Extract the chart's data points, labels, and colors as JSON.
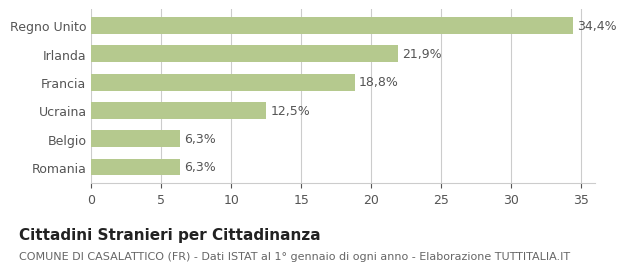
{
  "categories": [
    "Romania",
    "Belgio",
    "Ucraina",
    "Francia",
    "Irlanda",
    "Regno Unito"
  ],
  "values": [
    6.3,
    6.3,
    12.5,
    18.8,
    21.9,
    34.4
  ],
  "labels": [
    "6,3%",
    "6,3%",
    "12,5%",
    "18,8%",
    "21,9%",
    "34,4%"
  ],
  "bar_color": "#b5c98e",
  "background_color": "#ffffff",
  "xlim": [
    0,
    36
  ],
  "xticks": [
    0,
    5,
    10,
    15,
    20,
    25,
    30,
    35
  ],
  "title": "Cittadini Stranieri per Cittadinanza",
  "subtitle": "COMUNE DI CASALATTICO (FR) - Dati ISTAT al 1° gennaio di ogni anno - Elaborazione TUTTITALIA.IT",
  "title_fontsize": 11,
  "subtitle_fontsize": 8,
  "label_fontsize": 9,
  "tick_fontsize": 9,
  "bar_height": 0.6,
  "label_color": "#555555",
  "tick_color": "#555555",
  "spine_color": "#cccccc"
}
